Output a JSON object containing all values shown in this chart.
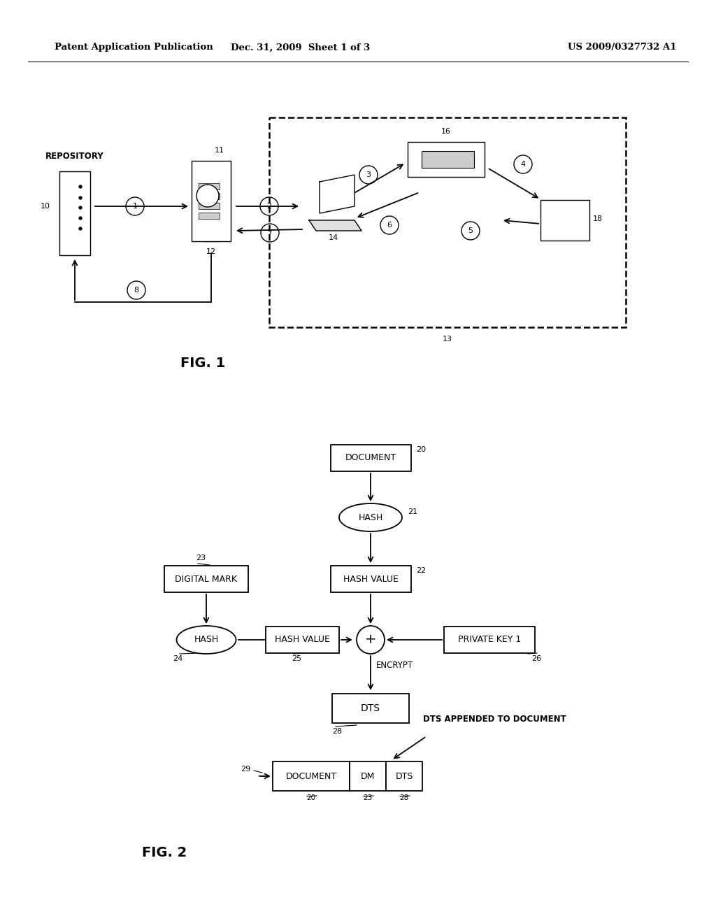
{
  "header_left": "Patent Application Publication",
  "header_center": "Dec. 31, 2009  Sheet 1 of 3",
  "header_right": "US 2009/0327732 A1",
  "fig1_label": "FIG. 1",
  "fig2_label": "FIG. 2",
  "background_color": "#ffffff",
  "line_color": "#000000"
}
